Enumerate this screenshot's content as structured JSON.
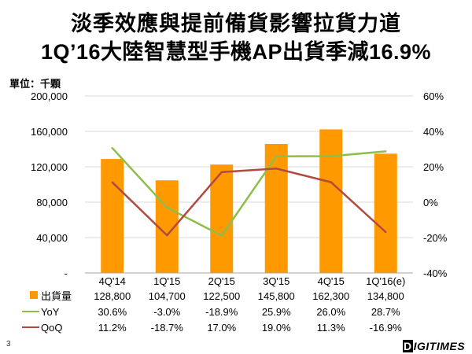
{
  "header": {
    "title_line1": "淡季效應與提前備貨影響拉貨力道",
    "title_line2": "1Q’16大陸智慧型手機AP出貨季減16.9%",
    "unit_label": "單位：千顆"
  },
  "footer": {
    "page_number": "3",
    "logo_text": "DIGITIMES"
  },
  "chart_data": {
    "type": "bar",
    "categories": [
      "4Q'14",
      "1Q'15",
      "2Q'15",
      "3Q'15",
      "4Q'15",
      "1Q'16(e)"
    ],
    "series": [
      {
        "name": "出貨量",
        "kind": "bar",
        "axis": "left",
        "color": "#FF9900",
        "values": [
          128800,
          104700,
          122500,
          145800,
          162300,
          134800
        ],
        "labels": [
          "128,800",
          "104,700",
          "122,500",
          "145,800",
          "162,300",
          "134,800"
        ]
      },
      {
        "name": "YoY",
        "kind": "line",
        "axis": "right",
        "color": "#8DBE4A",
        "values": [
          30.6,
          -3.0,
          -18.9,
          25.9,
          26.0,
          28.7
        ],
        "labels": [
          "30.6%",
          "-3.0%",
          "-18.9%",
          "25.9%",
          "26.0%",
          "28.7%"
        ]
      },
      {
        "name": "QoQ",
        "kind": "line",
        "axis": "right",
        "color": "#B24A40",
        "values": [
          11.2,
          -18.7,
          17.0,
          19.0,
          11.3,
          -16.9
        ],
        "labels": [
          "11.2%",
          "-18.7%",
          "17.0%",
          "19.0%",
          "11.3%",
          "-16.9%"
        ]
      }
    ],
    "left_axis": {
      "min": 0,
      "max": 200000,
      "ticks": [
        0,
        40000,
        80000,
        120000,
        160000,
        200000
      ],
      "tick_labels": [
        "-",
        "40,000",
        "80,000",
        "120,000",
        "160,000",
        "200,000"
      ]
    },
    "right_axis": {
      "min": -40,
      "max": 60,
      "ticks": [
        -40,
        -20,
        0,
        20,
        40,
        60
      ],
      "tick_labels": [
        "-40%",
        "-20%",
        "0%",
        "20%",
        "40%",
        "60%"
      ]
    },
    "grid": true,
    "legend": "data-table-below"
  }
}
